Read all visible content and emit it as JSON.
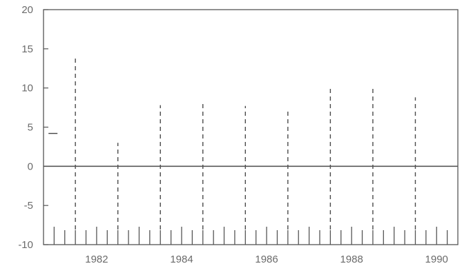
{
  "chart_data": {
    "type": "bar",
    "title": "",
    "xlabel": "",
    "ylabel": "",
    "ylim": [
      -10,
      20
    ],
    "yticks": [
      20,
      15,
      10,
      5,
      0,
      -5,
      -10
    ],
    "xlim": [
      1980.75,
      1990.5
    ],
    "xtick_labels": [
      "1982",
      "1984",
      "1986",
      "1988",
      "1990"
    ],
    "xtick_values": [
      1982,
      1984,
      1986,
      1988,
      1990
    ],
    "minor_tick_step_months": 3,
    "bar_style": "dashed vertical lines",
    "grid": false,
    "x": [
      1981.5,
      1982.5,
      1983.5,
      1984.5,
      1985.5,
      1986.5,
      1987.5,
      1988.5,
      1989.5
    ],
    "values": [
      13.8,
      3.0,
      7.8,
      8.3,
      7.7,
      7.4,
      10.1,
      9.9,
      8.8
    ],
    "extra_marks": [
      {
        "x": 1980.9,
        "y": 4.2
      }
    ]
  }
}
